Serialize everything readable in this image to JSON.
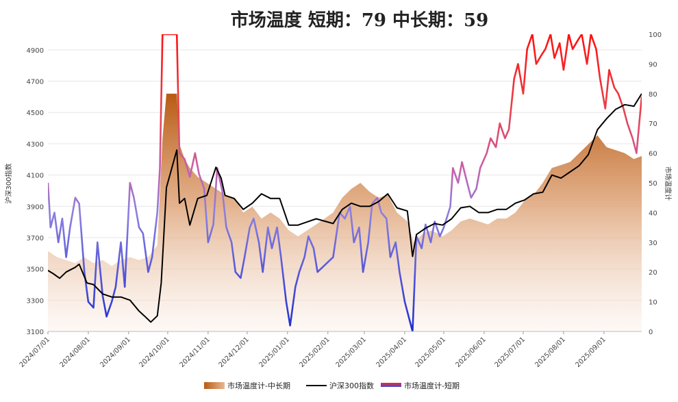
{
  "chart_data": {
    "type": "line",
    "title": "市场温度  短期：79 中长期：59",
    "ylabel_left": "沪深300指数",
    "ylabel_right": "市场温度计",
    "ylim_left": [
      3100,
      5000
    ],
    "ylim_right": [
      0,
      100
    ],
    "yticks_left": [
      3100,
      3300,
      3500,
      3700,
      3900,
      4100,
      4300,
      4500,
      4700,
      4900
    ],
    "yticks_right": [
      0,
      10,
      20,
      30,
      40,
      50,
      60,
      70,
      80,
      90,
      100
    ],
    "xticks": [
      "2024/07/01",
      "2024/08/01",
      "2024/09/01",
      "2024/10/01",
      "2024/11/01",
      "2024/12/01",
      "2025/01/01",
      "2025/02/01",
      "2025/03/01",
      "2025/04/01",
      "2025/05/01",
      "2025/06/01",
      "2025/07/01",
      "2025/08/01",
      "2025/09/01"
    ],
    "x_range": [
      "2024/07/01",
      "2025/09/30"
    ],
    "grid": true,
    "legend_position": "bottom",
    "series": [
      {
        "name": "市场温度计-中长期",
        "kind": "area",
        "axis": "right",
        "color": "#c8702a",
        "points": [
          [
            "2024/07/01",
            27
          ],
          [
            "2024/07/08",
            25
          ],
          [
            "2024/07/15",
            24
          ],
          [
            "2024/07/22",
            23
          ],
          [
            "2024/07/29",
            25
          ],
          [
            "2024/08/05",
            23
          ],
          [
            "2024/08/12",
            24
          ],
          [
            "2024/08/19",
            22
          ],
          [
            "2024/08/26",
            24
          ],
          [
            "2024/09/02",
            25
          ],
          [
            "2024/09/09",
            24
          ],
          [
            "2024/09/16",
            25
          ],
          [
            "2024/09/23",
            29
          ],
          [
            "2024/09/27",
            65
          ],
          [
            "2024/09/30",
            80
          ],
          [
            "2024/10/08",
            80
          ],
          [
            "2024/10/10",
            63
          ],
          [
            "2024/10/14",
            58
          ],
          [
            "2024/10/18",
            55
          ],
          [
            "2024/10/24",
            52
          ],
          [
            "2024/10/31",
            50
          ],
          [
            "2024/11/07",
            48
          ],
          [
            "2024/11/14",
            46
          ],
          [
            "2024/11/21",
            45
          ],
          [
            "2024/11/28",
            40
          ],
          [
            "2024/12/05",
            42
          ],
          [
            "2024/12/12",
            38
          ],
          [
            "2024/12/19",
            40
          ],
          [
            "2024/12/26",
            38
          ],
          [
            "2025/01/02",
            34
          ],
          [
            "2025/01/09",
            32
          ],
          [
            "2025/01/16",
            34
          ],
          [
            "2025/01/23",
            36
          ],
          [
            "2025/02/05",
            40
          ],
          [
            "2025/02/12",
            45
          ],
          [
            "2025/02/19",
            48
          ],
          [
            "2025/02/26",
            50
          ],
          [
            "2025/03/05",
            47
          ],
          [
            "2025/03/12",
            45
          ],
          [
            "2025/03/19",
            46
          ],
          [
            "2025/03/26",
            40
          ],
          [
            "2025/04/03",
            37
          ],
          [
            "2025/04/08",
            30
          ],
          [
            "2025/04/15",
            33
          ],
          [
            "2025/04/22",
            34
          ],
          [
            "2025/04/30",
            32
          ],
          [
            "2025/05/07",
            34
          ],
          [
            "2025/05/14",
            37
          ],
          [
            "2025/05/21",
            38
          ],
          [
            "2025/05/28",
            37
          ],
          [
            "2025/06/04",
            36
          ],
          [
            "2025/06/11",
            38
          ],
          [
            "2025/06/18",
            38
          ],
          [
            "2025/06/25",
            40
          ],
          [
            "2025/07/02",
            44
          ],
          [
            "2025/07/09",
            46
          ],
          [
            "2025/07/16",
            50
          ],
          [
            "2025/07/23",
            55
          ],
          [
            "2025/07/30",
            56
          ],
          [
            "2025/08/06",
            57
          ],
          [
            "2025/08/13",
            60
          ],
          [
            "2025/08/20",
            63
          ],
          [
            "2025/08/27",
            66
          ],
          [
            "2025/09/03",
            62
          ],
          [
            "2025/09/10",
            61
          ],
          [
            "2025/09/17",
            60
          ],
          [
            "2025/09/24",
            58
          ],
          [
            "2025/09/30",
            59
          ]
        ]
      },
      {
        "name": "沪深300指数",
        "kind": "line",
        "axis": "left",
        "color": "#000000",
        "points": [
          [
            "2024/07/01",
            3490
          ],
          [
            "2024/07/05",
            3470
          ],
          [
            "2024/07/10",
            3440
          ],
          [
            "2024/07/15",
            3480
          ],
          [
            "2024/07/22",
            3510
          ],
          [
            "2024/07/25",
            3530
          ],
          [
            "2024/07/31",
            3410
          ],
          [
            "2024/08/05",
            3400
          ],
          [
            "2024/08/12",
            3340
          ],
          [
            "2024/08/19",
            3320
          ],
          [
            "2024/08/26",
            3320
          ],
          [
            "2024/09/02",
            3300
          ],
          [
            "2024/09/09",
            3230
          ],
          [
            "2024/09/13",
            3200
          ],
          [
            "2024/09/18",
            3160
          ],
          [
            "2024/09/23",
            3200
          ],
          [
            "2024/09/26",
            3410
          ],
          [
            "2024/09/30",
            4020
          ],
          [
            "2024/10/08",
            4260
          ],
          [
            "2024/10/10",
            3920
          ],
          [
            "2024/10/14",
            3950
          ],
          [
            "2024/10/18",
            3780
          ],
          [
            "2024/10/24",
            3950
          ],
          [
            "2024/10/31",
            3970
          ],
          [
            "2024/11/07",
            4150
          ],
          [
            "2024/11/11",
            4080
          ],
          [
            "2024/11/14",
            3970
          ],
          [
            "2024/11/21",
            3950
          ],
          [
            "2024/11/28",
            3880
          ],
          [
            "2024/12/05",
            3920
          ],
          [
            "2024/12/12",
            3980
          ],
          [
            "2024/12/19",
            3950
          ],
          [
            "2024/12/26",
            3950
          ],
          [
            "2025/01/02",
            3780
          ],
          [
            "2025/01/09",
            3780
          ],
          [
            "2025/01/16",
            3800
          ],
          [
            "2025/01/23",
            3820
          ],
          [
            "2025/02/05",
            3790
          ],
          [
            "2025/02/12",
            3880
          ],
          [
            "2025/02/19",
            3920
          ],
          [
            "2025/02/26",
            3900
          ],
          [
            "2025/03/05",
            3900
          ],
          [
            "2025/03/12",
            3930
          ],
          [
            "2025/03/19",
            3980
          ],
          [
            "2025/03/26",
            3890
          ],
          [
            "2025/04/03",
            3870
          ],
          [
            "2025/04/07",
            3580
          ],
          [
            "2025/04/10",
            3720
          ],
          [
            "2025/04/17",
            3760
          ],
          [
            "2025/04/24",
            3790
          ],
          [
            "2025/04/30",
            3780
          ],
          [
            "2025/05/07",
            3820
          ],
          [
            "2025/05/14",
            3890
          ],
          [
            "2025/05/21",
            3900
          ],
          [
            "2025/05/28",
            3860
          ],
          [
            "2025/06/04",
            3860
          ],
          [
            "2025/06/11",
            3880
          ],
          [
            "2025/06/18",
            3880
          ],
          [
            "2025/06/25",
            3920
          ],
          [
            "2025/07/02",
            3940
          ],
          [
            "2025/07/09",
            3980
          ],
          [
            "2025/07/16",
            3990
          ],
          [
            "2025/07/23",
            4100
          ],
          [
            "2025/07/30",
            4080
          ],
          [
            "2025/08/06",
            4120
          ],
          [
            "2025/08/13",
            4160
          ],
          [
            "2025/08/20",
            4230
          ],
          [
            "2025/08/27",
            4390
          ],
          [
            "2025/09/03",
            4460
          ],
          [
            "2025/09/10",
            4520
          ],
          [
            "2025/09/17",
            4550
          ],
          [
            "2025/09/24",
            4540
          ],
          [
            "2025/09/30",
            4620
          ]
        ]
      },
      {
        "name": "市场温度计-短期",
        "kind": "gradient-line",
        "axis": "right",
        "color_low": "#3a4fd8",
        "color_high": "#ff2020",
        "points": [
          [
            "2024/07/01",
            50
          ],
          [
            "2024/07/03",
            35
          ],
          [
            "2024/07/06",
            40
          ],
          [
            "2024/07/09",
            30
          ],
          [
            "2024/07/12",
            38
          ],
          [
            "2024/07/15",
            25
          ],
          [
            "2024/07/18",
            35
          ],
          [
            "2024/07/22",
            45
          ],
          [
            "2024/07/25",
            43
          ],
          [
            "2024/07/29",
            20
          ],
          [
            "2024/08/01",
            10
          ],
          [
            "2024/08/05",
            8
          ],
          [
            "2024/08/08",
            30
          ],
          [
            "2024/08/12",
            12
          ],
          [
            "2024/08/15",
            5
          ],
          [
            "2024/08/19",
            10
          ],
          [
            "2024/08/22",
            15
          ],
          [
            "2024/08/26",
            30
          ],
          [
            "2024/08/29",
            15
          ],
          [
            "2024/09/02",
            50
          ],
          [
            "2024/09/05",
            45
          ],
          [
            "2024/09/09",
            35
          ],
          [
            "2024/09/12",
            33
          ],
          [
            "2024/09/16",
            20
          ],
          [
            "2024/09/19",
            25
          ],
          [
            "2024/09/23",
            40
          ],
          [
            "2024/09/25",
            55
          ],
          [
            "2024/09/27",
            100
          ],
          [
            "2024/10/08",
            100
          ],
          [
            "2024/10/10",
            60
          ],
          [
            "2024/10/14",
            58
          ],
          [
            "2024/10/18",
            52
          ],
          [
            "2024/10/22",
            60
          ],
          [
            "2024/10/25",
            53
          ],
          [
            "2024/10/29",
            48
          ],
          [
            "2024/11/01",
            30
          ],
          [
            "2024/11/05",
            36
          ],
          [
            "2024/11/08",
            55
          ],
          [
            "2024/11/12",
            47
          ],
          [
            "2024/11/15",
            35
          ],
          [
            "2024/11/19",
            30
          ],
          [
            "2024/11/22",
            20
          ],
          [
            "2024/11/26",
            18
          ],
          [
            "2024/11/29",
            25
          ],
          [
            "2024/12/03",
            35
          ],
          [
            "2024/12/06",
            38
          ],
          [
            "2024/12/10",
            30
          ],
          [
            "2024/12/13",
            20
          ],
          [
            "2024/12/17",
            35
          ],
          [
            "2024/12/20",
            28
          ],
          [
            "2024/12/24",
            35
          ],
          [
            "2024/12/27",
            25
          ],
          [
            "2024/12/31",
            10
          ],
          [
            "2025/01/03",
            2
          ],
          [
            "2025/01/07",
            15
          ],
          [
            "2025/01/10",
            20
          ],
          [
            "2025/01/14",
            25
          ],
          [
            "2025/01/17",
            32
          ],
          [
            "2025/01/21",
            28
          ],
          [
            "2025/01/24",
            20
          ],
          [
            "2025/02/05",
            25
          ],
          [
            "2025/02/10",
            40
          ],
          [
            "2025/02/14",
            38
          ],
          [
            "2025/02/18",
            42
          ],
          [
            "2025/02/21",
            30
          ],
          [
            "2025/02/25",
            35
          ],
          [
            "2025/02/28",
            20
          ],
          [
            "2025/03/04",
            30
          ],
          [
            "2025/03/07",
            43
          ],
          [
            "2025/03/11",
            45
          ],
          [
            "2025/03/14",
            40
          ],
          [
            "2025/03/18",
            38
          ],
          [
            "2025/03/21",
            25
          ],
          [
            "2025/03/25",
            30
          ],
          [
            "2025/03/28",
            20
          ],
          [
            "2025/04/01",
            10
          ],
          [
            "2025/04/07",
            0
          ],
          [
            "2025/04/10",
            32
          ],
          [
            "2025/04/14",
            28
          ],
          [
            "2025/04/17",
            36
          ],
          [
            "2025/04/21",
            30
          ],
          [
            "2025/04/24",
            37
          ],
          [
            "2025/04/28",
            32
          ],
          [
            "2025/05/01",
            35
          ],
          [
            "2025/05/06",
            42
          ],
          [
            "2025/05/08",
            55
          ],
          [
            "2025/05/12",
            50
          ],
          [
            "2025/05/15",
            57
          ],
          [
            "2025/05/19",
            50
          ],
          [
            "2025/05/22",
            45
          ],
          [
            "2025/05/26",
            48
          ],
          [
            "2025/05/29",
            55
          ],
          [
            "2025/06/03",
            60
          ],
          [
            "2025/06/06",
            65
          ],
          [
            "2025/06/10",
            62
          ],
          [
            "2025/06/13",
            70
          ],
          [
            "2025/06/17",
            65
          ],
          [
            "2025/06/20",
            68
          ],
          [
            "2025/06/24",
            85
          ],
          [
            "2025/06/27",
            90
          ],
          [
            "2025/07/01",
            80
          ],
          [
            "2025/07/04",
            95
          ],
          [
            "2025/07/08",
            100
          ],
          [
            "2025/07/11",
            90
          ],
          [
            "2025/07/15",
            93
          ],
          [
            "2025/07/18",
            95
          ],
          [
            "2025/07/22",
            100
          ],
          [
            "2025/07/25",
            92
          ],
          [
            "2025/07/29",
            97
          ],
          [
            "2025/08/01",
            88
          ],
          [
            "2025/08/05",
            100
          ],
          [
            "2025/08/08",
            95
          ],
          [
            "2025/08/12",
            98
          ],
          [
            "2025/08/15",
            100
          ],
          [
            "2025/08/19",
            90
          ],
          [
            "2025/08/22",
            100
          ],
          [
            "2025/08/26",
            95
          ],
          [
            "2025/08/29",
            85
          ],
          [
            "2025/09/02",
            75
          ],
          [
            "2025/09/05",
            88
          ],
          [
            "2025/09/09",
            82
          ],
          [
            "2025/09/12",
            80
          ],
          [
            "2025/09/16",
            75
          ],
          [
            "2025/09/19",
            70
          ],
          [
            "2025/09/23",
            65
          ],
          [
            "2025/09/26",
            60
          ],
          [
            "2025/09/30",
            79
          ]
        ]
      }
    ]
  }
}
